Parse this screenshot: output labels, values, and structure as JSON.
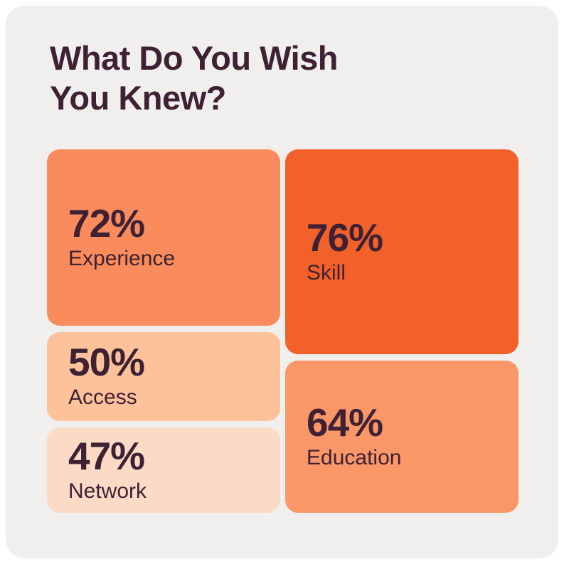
{
  "page": {
    "background": "#FFFFFF",
    "card_background": "#F0EFED",
    "text_color": "#3E2133"
  },
  "title": {
    "text": "What Do You Wish\nYou Knew?"
  },
  "chart_data": {
    "type": "treemap",
    "title": "What Do You Wish You Knew?",
    "unit": "percent",
    "legend": "none",
    "text_color": "#3E2133",
    "layout_hint": "two-column treemap; left column: Experience, Access, Network; right column: Skill, Education; block area proportional to value",
    "items": [
      {
        "label": "Experience",
        "value": 72,
        "value_label": "72%",
        "color": "#F98B5C"
      },
      {
        "label": "Skill",
        "value": 76,
        "value_label": "76%",
        "color": "#F3612A"
      },
      {
        "label": "Access",
        "value": 50,
        "value_label": "50%",
        "color": "#FEC29B"
      },
      {
        "label": "Network",
        "value": 47,
        "value_label": "47%",
        "color": "#FBDBC6"
      },
      {
        "label": "Education",
        "value": 64,
        "value_label": "64%",
        "color": "#FA9768"
      }
    ]
  }
}
